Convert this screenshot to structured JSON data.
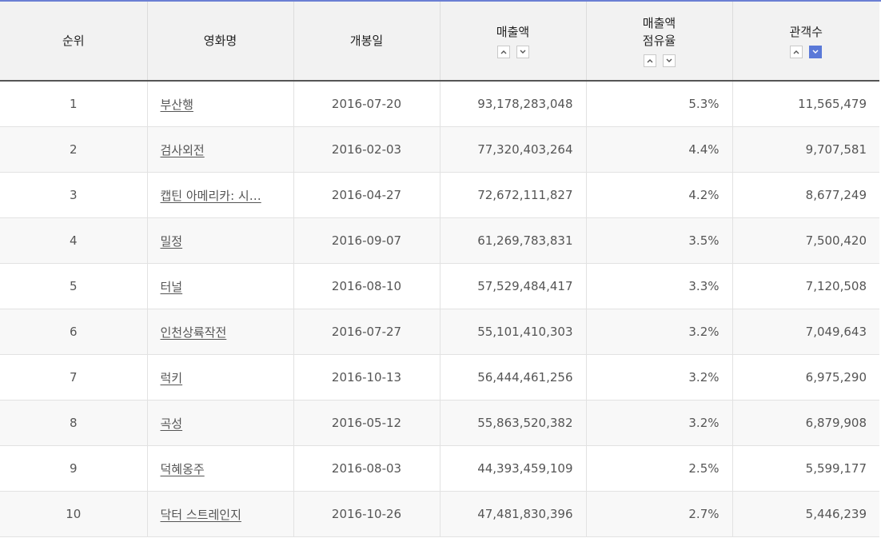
{
  "table": {
    "headers": {
      "rank": "순위",
      "title": "영화명",
      "release": "개봉일",
      "sales": "매출액",
      "share_line1": "매출액",
      "share_line2": "점유율",
      "audience": "관객수"
    },
    "sort_state": {
      "audience_desc_active": true
    },
    "rows": [
      {
        "rank": "1",
        "title": "부산행",
        "release": "2016-07-20",
        "sales": "93,178,283,048",
        "share": "5.3%",
        "audience": "11,565,479"
      },
      {
        "rank": "2",
        "title": "검사외전",
        "release": "2016-02-03",
        "sales": "77,320,403,264",
        "share": "4.4%",
        "audience": "9,707,581"
      },
      {
        "rank": "3",
        "title": "캡틴 아메리카: 시…",
        "release": "2016-04-27",
        "sales": "72,672,111,827",
        "share": "4.2%",
        "audience": "8,677,249"
      },
      {
        "rank": "4",
        "title": "밀정",
        "release": "2016-09-07",
        "sales": "61,269,783,831",
        "share": "3.5%",
        "audience": "7,500,420"
      },
      {
        "rank": "5",
        "title": "터널",
        "release": "2016-08-10",
        "sales": "57,529,484,417",
        "share": "3.3%",
        "audience": "7,120,508"
      },
      {
        "rank": "6",
        "title": "인천상륙작전",
        "release": "2016-07-27",
        "sales": "55,101,410,303",
        "share": "3.2%",
        "audience": "7,049,643"
      },
      {
        "rank": "7",
        "title": "럭키",
        "release": "2016-10-13",
        "sales": "56,444,461,256",
        "share": "3.2%",
        "audience": "6,975,290"
      },
      {
        "rank": "8",
        "title": "곡성",
        "release": "2016-05-12",
        "sales": "55,863,520,382",
        "share": "3.2%",
        "audience": "6,879,908"
      },
      {
        "rank": "9",
        "title": "덕혜옹주",
        "release": "2016-08-03",
        "sales": "44,393,459,109",
        "share": "2.5%",
        "audience": "5,599,177"
      },
      {
        "rank": "10",
        "title": "닥터 스트레인지",
        "release": "2016-10-26",
        "sales": "47,481,830,396",
        "share": "2.7%",
        "audience": "5,446,239"
      }
    ]
  },
  "colors": {
    "accent": "#5a79d8",
    "header_bg": "#f2f2f2",
    "stripe_bg": "#f8f8f8"
  }
}
